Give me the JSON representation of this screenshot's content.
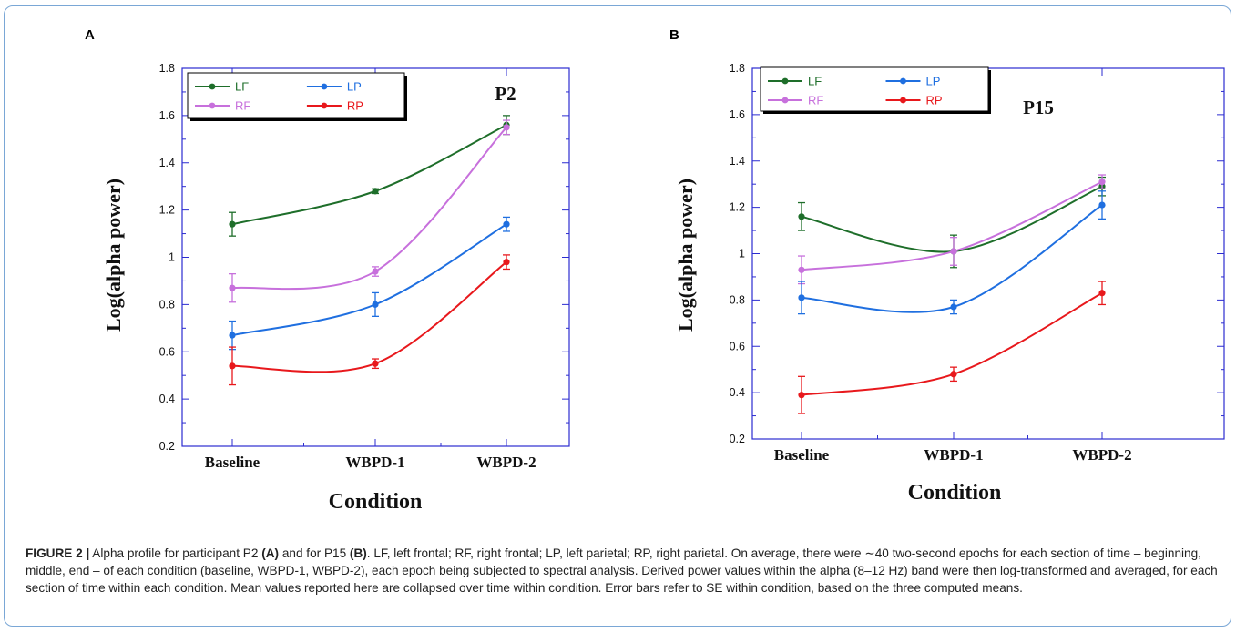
{
  "panels": [
    {
      "letter": "A",
      "annotation": "P2",
      "ylabel": "Log(alpha power)",
      "xlabel": "Condition",
      "chart_data": {
        "type": "line",
        "categories": [
          "Baseline",
          "WBPD-1",
          "WBPD-2"
        ],
        "ylim": [
          0.2,
          1.8
        ],
        "yticks": [
          "0.2",
          "0.4",
          "0.6",
          "0.8",
          "1",
          "1.2",
          "1.4",
          "1.6",
          "1.8"
        ],
        "legend_position": "top-left",
        "grid": false,
        "series": [
          {
            "name": "LF",
            "color": "#1e6e2a",
            "values": [
              1.14,
              1.28,
              1.56
            ],
            "errors": [
              0.05,
              0.01,
              0.04
            ]
          },
          {
            "name": "RF",
            "color": "#c770dc",
            "values": [
              0.87,
              0.94,
              1.55
            ],
            "errors": [
              0.06,
              0.02,
              0.03
            ]
          },
          {
            "name": "LP",
            "color": "#1f6fe0",
            "values": [
              0.67,
              0.8,
              1.14
            ],
            "errors": [
              0.06,
              0.05,
              0.03
            ]
          },
          {
            "name": "RP",
            "color": "#e8181c",
            "values": [
              0.54,
              0.55,
              0.98
            ],
            "errors": [
              0.08,
              0.02,
              0.03
            ]
          }
        ]
      }
    },
    {
      "letter": "B",
      "annotation": "P15",
      "ylabel": "Log(alpha power)",
      "xlabel": "Condition",
      "chart_data": {
        "type": "line",
        "categories": [
          "Baseline",
          "WBPD-1",
          "WBPD-2"
        ],
        "ylim": [
          0.2,
          1.8
        ],
        "yticks": [
          "0.2",
          "0.4",
          "0.6",
          "0.8",
          "1",
          "1.2",
          "1.4",
          "1.6",
          "1.8"
        ],
        "legend_position": "top-left",
        "grid": false,
        "series": [
          {
            "name": "LF",
            "color": "#1e6e2a",
            "values": [
              1.16,
              1.01,
              1.29
            ],
            "errors": [
              0.06,
              0.07,
              0.04
            ]
          },
          {
            "name": "RF",
            "color": "#c770dc",
            "values": [
              0.93,
              1.01,
              1.31
            ],
            "errors": [
              0.06,
              0.06,
              0.03
            ]
          },
          {
            "name": "LP",
            "color": "#1f6fe0",
            "values": [
              0.81,
              0.77,
              1.21
            ],
            "errors": [
              0.07,
              0.03,
              0.06
            ]
          },
          {
            "name": "RP",
            "color": "#e8181c",
            "values": [
              0.39,
              0.48,
              0.83
            ],
            "errors": [
              0.08,
              0.03,
              0.05
            ]
          }
        ]
      }
    }
  ],
  "caption": {
    "lead": "FIGURE 2 |",
    "part1": " Alpha profile for participant P2 ",
    "b1": "(A)",
    "part2": " and for P15 ",
    "b2": "(B)",
    "part3": ". LF, left frontal; RF, right frontal; LP, left parietal; RP, right parietal. On average, there were ∼40 two-second epochs for each section of time – beginning, middle, end – of each condition (baseline, WBPD-1, WBPD-2), each epoch being subjected to spectral analysis. Derived power values within the alpha (8–12 Hz) band were then log-transformed and averaged, for each section of time within each condition. Mean values reported here are collapsed over time within condition. Error bars refer to SE within condition, based on the three computed means."
  }
}
